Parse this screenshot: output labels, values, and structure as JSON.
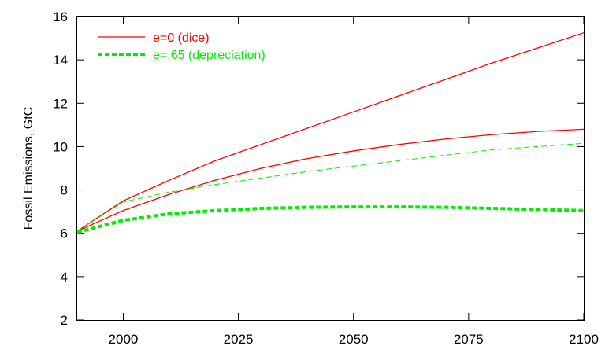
{
  "chart_data": {
    "type": "line",
    "title": "",
    "xlabel": "",
    "ylabel": "Fossil Emissions, GtC",
    "xlim": [
      1990,
      2100
    ],
    "ylim": [
      2,
      16
    ],
    "xticks": [
      2000,
      2025,
      2050,
      2075,
      2100
    ],
    "yticks": [
      2,
      4,
      6,
      8,
      10,
      12,
      14,
      16
    ],
    "grid": false,
    "legend_position": "top-left",
    "colors": {
      "red": "#ff0000",
      "green": "#00ee00",
      "axis": "#000000"
    },
    "legend": [
      {
        "label": "e=0 (dice)",
        "color": "#ff0000",
        "style": "solid-thin"
      },
      {
        "label": "e=.65 (depreciation)",
        "color": "#00ee00",
        "style": "dashed-thick"
      }
    ],
    "series": [
      {
        "name": "e=0 (dice)",
        "color": "#ff0000",
        "style": "solid-thin",
        "x": [
          1990,
          2000,
          2010,
          2020,
          2030,
          2040,
          2050,
          2060,
          2070,
          2080,
          2090,
          2100
        ],
        "y": [
          6.1,
          7.5,
          8.45,
          9.35,
          10.1,
          10.85,
          11.6,
          12.35,
          13.1,
          13.85,
          14.55,
          15.25
        ]
      },
      {
        "color": "#ff0000",
        "style": "solid-thin",
        "x": [
          1990,
          2000,
          2010,
          2020,
          2030,
          2040,
          2050,
          2060,
          2070,
          2080,
          2090,
          2100
        ],
        "y": [
          6.1,
          7.05,
          7.8,
          8.45,
          9.0,
          9.45,
          9.8,
          10.1,
          10.35,
          10.55,
          10.7,
          10.8
        ]
      },
      {
        "color": "#00ee00",
        "style": "dashed-thin",
        "x": [
          1990,
          2000,
          2010,
          2020,
          2030,
          2040,
          2050,
          2060,
          2070,
          2080,
          2090,
          2100
        ],
        "y": [
          6.1,
          7.45,
          7.9,
          8.25,
          8.55,
          8.85,
          9.1,
          9.35,
          9.6,
          9.85,
          10.0,
          10.15
        ]
      },
      {
        "name": "e=.65 (depreciation)",
        "color": "#00ee00",
        "style": "dashed-thick",
        "x": [
          1990,
          2000,
          2010,
          2020,
          2030,
          2040,
          2050,
          2060,
          2070,
          2080,
          2090,
          2100
        ],
        "y": [
          6.05,
          6.6,
          6.9,
          7.05,
          7.15,
          7.2,
          7.22,
          7.22,
          7.2,
          7.15,
          7.1,
          7.05
        ]
      }
    ]
  }
}
